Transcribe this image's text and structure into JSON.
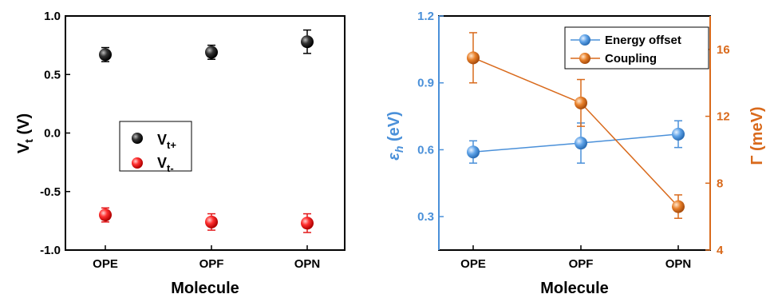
{
  "colors": {
    "vt_plus": "#000000",
    "vt_minus": "#e31a1c",
    "energy_offset": "#4a90d9",
    "coupling": "#d96a1c",
    "axis": "#000000"
  },
  "chart_data": [
    {
      "type": "scatter",
      "categories": [
        "OPE",
        "OPF",
        "OPN"
      ],
      "xlabel": "Molecule",
      "ylabel": {
        "main": "V",
        "sub": "t",
        "unit": " (V)"
      },
      "ylim": [
        -1.0,
        1.0
      ],
      "yticks": [
        -1.0,
        -0.5,
        0.0,
        0.5,
        1.0
      ],
      "ytick_labels": [
        "-1.0",
        "-0.5",
        "0.0",
        "0.5",
        "1.0"
      ],
      "grid": false,
      "legend_position": "center-left",
      "series": [
        {
          "name": "V",
          "name_sub": "t+",
          "color_key": "vt_plus",
          "values": [
            0.67,
            0.69,
            0.78
          ],
          "errors": [
            0.06,
            0.06,
            0.1
          ]
        },
        {
          "name": "V",
          "name_sub": "t-",
          "color_key": "vt_minus",
          "values": [
            -0.7,
            -0.76,
            -0.77
          ],
          "errors": [
            0.06,
            0.07,
            0.08
          ]
        }
      ]
    },
    {
      "type": "line",
      "categories": [
        "OPE",
        "OPF",
        "OPN"
      ],
      "xlabel": "Molecule",
      "ylabel_left": {
        "main": "ε",
        "sub": "h",
        "unit": " (eV)"
      },
      "ylim_left": [
        0.15,
        1.2
      ],
      "yticks_left": [
        0.3,
        0.6,
        0.9,
        1.2
      ],
      "ytick_labels_left": [
        "0.3",
        "0.6",
        "0.9",
        "1.2"
      ],
      "ylabel_right": {
        "main": "Γ",
        "unit": " (meV)"
      },
      "ylim_right": [
        4,
        18
      ],
      "yticks_right": [
        4,
        8,
        12,
        16
      ],
      "ytick_labels_right": [
        "4",
        "8",
        "12",
        "16"
      ],
      "grid": false,
      "legend_position": "top-right",
      "series": [
        {
          "name": "Energy offset",
          "axis": "left",
          "color_key": "energy_offset",
          "values": [
            0.59,
            0.63,
            0.67
          ],
          "errors": [
            0.05,
            0.09,
            0.06
          ]
        },
        {
          "name": "Coupling",
          "axis": "right",
          "color_key": "coupling",
          "values": [
            15.5,
            12.8,
            6.6
          ],
          "errors": [
            1.5,
            1.4,
            0.7
          ]
        }
      ]
    }
  ]
}
